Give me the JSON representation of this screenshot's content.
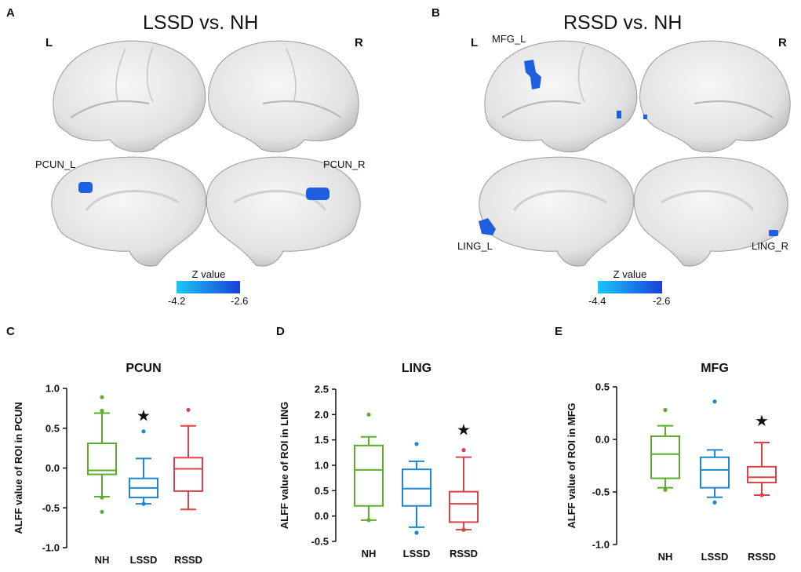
{
  "panels": {
    "A": {
      "letter": "A",
      "title": "LSSD vs. NH",
      "left_label": "L",
      "right_label": "R",
      "roi_left": "PCUN_L",
      "roi_right": "PCUN_R",
      "colorbar": {
        "title": "Z value",
        "min_label": "-4.2",
        "max_label": "-2.6",
        "color_start": "#19c8f5",
        "color_end": "#1a3fd9"
      }
    },
    "B": {
      "letter": "B",
      "title": "RSSD vs. NH",
      "left_label": "L",
      "right_label": "R",
      "roi_top": "MFG_L",
      "roi_left": "LING_L",
      "roi_right": "LING_R",
      "colorbar": {
        "title": "Z value",
        "min_label": "-4.4",
        "max_label": "-2.6",
        "color_start": "#19c8f5",
        "color_end": "#1a3fd9"
      }
    }
  },
  "colors": {
    "NH": "#5aae2b",
    "LSSD": "#1f86cf",
    "RSSD": "#d9444a",
    "cluster": "#1e5fe0",
    "brain": "#ececec"
  },
  "chart_data": [
    {
      "letter": "C",
      "type": "boxplot",
      "title": "PCUN",
      "ylabel": "ALFF value of ROI in PCUN",
      "categories": [
        "NH",
        "LSSD",
        "RSSD"
      ],
      "ylim": [
        -1.0,
        1.0
      ],
      "yticks": [
        "1.0",
        "0.5",
        "0.0",
        "-0.5",
        "-1.0"
      ],
      "ytick_values": [
        1.0,
        0.5,
        0.0,
        -0.5,
        -1.0
      ],
      "boxes": [
        {
          "group": "NH",
          "whisker_low": -0.36,
          "q1": -0.08,
          "median": -0.03,
          "q3": 0.31,
          "whisker_high": 0.69,
          "outliers": [
            0.89,
            0.72,
            -0.37,
            -0.55
          ]
        },
        {
          "group": "LSSD",
          "whisker_low": -0.45,
          "q1": -0.37,
          "median": -0.25,
          "q3": -0.13,
          "whisker_high": 0.12,
          "outliers": [
            0.46,
            -0.45
          ]
        },
        {
          "group": "RSSD",
          "whisker_low": -0.52,
          "q1": -0.29,
          "median": -0.01,
          "q3": 0.13,
          "whisker_high": 0.53,
          "outliers": [
            0.73
          ]
        }
      ],
      "significance": {
        "group": "LSSD",
        "symbol": "★",
        "value": 0.66
      }
    },
    {
      "letter": "D",
      "type": "boxplot",
      "title": "LING",
      "ylabel": "ALFF value of ROI in LING",
      "categories": [
        "NH",
        "LSSD",
        "RSSD"
      ],
      "ylim": [
        -0.5,
        2.5
      ],
      "yticks": [
        "2.5",
        "2.0",
        "1.5",
        "1.0",
        "0.5",
        "0.0",
        "-0.5"
      ],
      "ytick_values": [
        2.5,
        2.0,
        1.5,
        1.0,
        0.5,
        0.0,
        -0.5
      ],
      "boxes": [
        {
          "group": "NH",
          "whisker_low": -0.08,
          "q1": 0.2,
          "median": 0.91,
          "q3": 1.39,
          "whisker_high": 1.56,
          "outliers": [
            2.0,
            -0.08
          ]
        },
        {
          "group": "LSSD",
          "whisker_low": -0.22,
          "q1": 0.2,
          "median": 0.54,
          "q3": 0.92,
          "whisker_high": 1.08,
          "outliers": [
            1.42,
            -0.33
          ]
        },
        {
          "group": "RSSD",
          "whisker_low": -0.27,
          "q1": -0.12,
          "median": 0.24,
          "q3": 0.48,
          "whisker_high": 1.16,
          "outliers": [
            1.3,
            -0.27
          ]
        }
      ],
      "significance": {
        "group": "RSSD",
        "symbol": "★",
        "value": 1.7
      }
    },
    {
      "letter": "E",
      "type": "boxplot",
      "title": "MFG",
      "ylabel": "ALFF value of ROI in MFG",
      "categories": [
        "NH",
        "LSSD",
        "RSSD"
      ],
      "ylim": [
        -1.0,
        0.5
      ],
      "yticks": [
        "0.5",
        "0.0",
        "-0.5",
        "-1.0"
      ],
      "ytick_values": [
        0.5,
        0.0,
        -0.5,
        -1.0
      ],
      "boxes": [
        {
          "group": "NH",
          "whisker_low": -0.46,
          "q1": -0.37,
          "median": -0.14,
          "q3": 0.03,
          "whisker_high": 0.13,
          "outliers": [
            0.28,
            -0.48
          ]
        },
        {
          "group": "LSSD",
          "whisker_low": -0.55,
          "q1": -0.46,
          "median": -0.29,
          "q3": -0.17,
          "whisker_high": -0.1,
          "outliers": [
            0.36,
            -0.6
          ]
        },
        {
          "group": "RSSD",
          "whisker_low": -0.53,
          "q1": -0.41,
          "median": -0.36,
          "q3": -0.26,
          "whisker_high": -0.03,
          "outliers": [
            -0.53
          ]
        }
      ],
      "significance": {
        "group": "RSSD",
        "symbol": "★",
        "value": 0.18
      }
    }
  ]
}
